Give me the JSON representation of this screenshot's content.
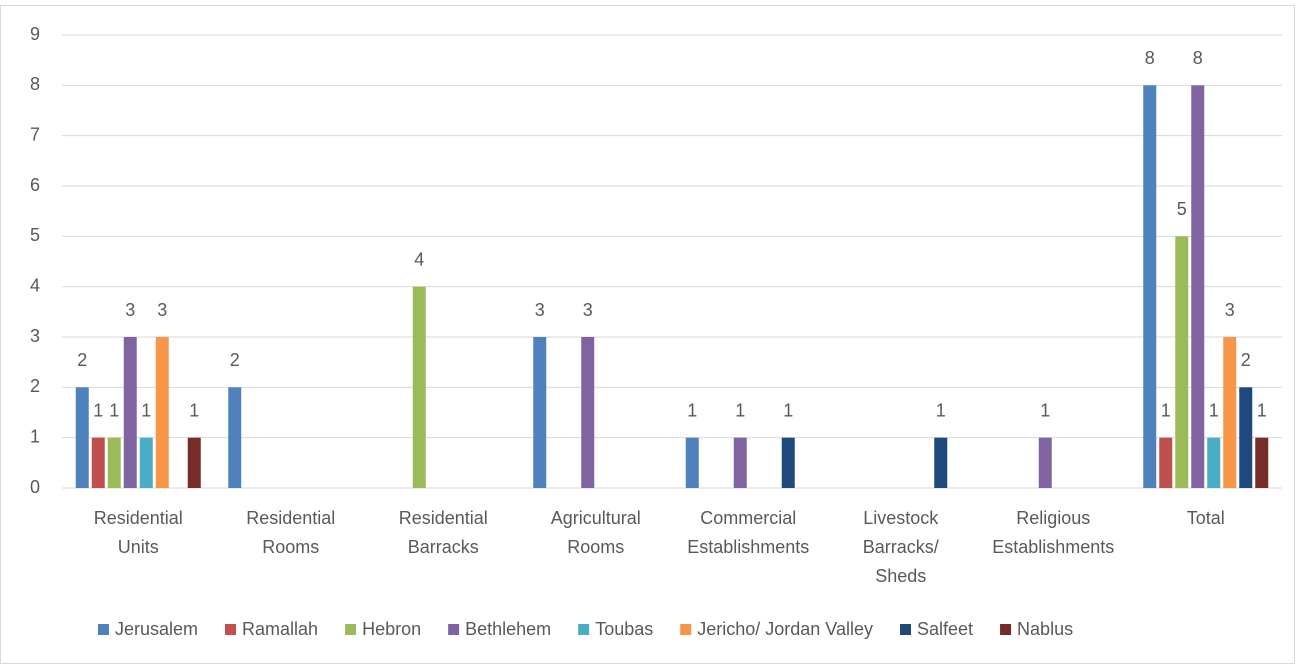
{
  "chart_data": {
    "type": "bar",
    "categories": [
      "Residential Units",
      "Residential Rooms",
      "Residential Barracks",
      "Agricultural Rooms",
      "Commercial Establishments",
      "Livestock Barracks/ Sheds",
      "Religious Establishments",
      "Total"
    ],
    "series": [
      {
        "name": "Jerusalem",
        "color": "#4f81bd",
        "values": [
          2,
          2,
          0,
          3,
          1,
          0,
          0,
          8
        ]
      },
      {
        "name": "Ramallah",
        "color": "#c0504d",
        "values": [
          1,
          0,
          0,
          0,
          0,
          0,
          0,
          1
        ]
      },
      {
        "name": "Hebron",
        "color": "#9bbb59",
        "values": [
          1,
          0,
          4,
          0,
          0,
          0,
          0,
          5
        ]
      },
      {
        "name": "Bethlehem",
        "color": "#8064a2",
        "values": [
          3,
          0,
          0,
          3,
          1,
          0,
          1,
          8
        ]
      },
      {
        "name": "Toubas",
        "color": "#4bacc6",
        "values": [
          1,
          0,
          0,
          0,
          0,
          0,
          0,
          1
        ]
      },
      {
        "name": "Jericho/ Jordan Valley",
        "color": "#f79646",
        "values": [
          3,
          0,
          0,
          0,
          0,
          0,
          0,
          3
        ]
      },
      {
        "name": "Salfeet",
        "color": "#1f497d",
        "values": [
          0,
          0,
          0,
          0,
          1,
          1,
          0,
          2
        ]
      },
      {
        "name": "Nablus",
        "color": "#772c2a",
        "values": [
          1,
          0,
          0,
          0,
          0,
          0,
          0,
          1
        ]
      }
    ],
    "ylim": [
      0,
      9
    ],
    "yticks": [
      0,
      1,
      2,
      3,
      4,
      5,
      6,
      7,
      8,
      9
    ],
    "grid": true,
    "legend": "bottom"
  }
}
